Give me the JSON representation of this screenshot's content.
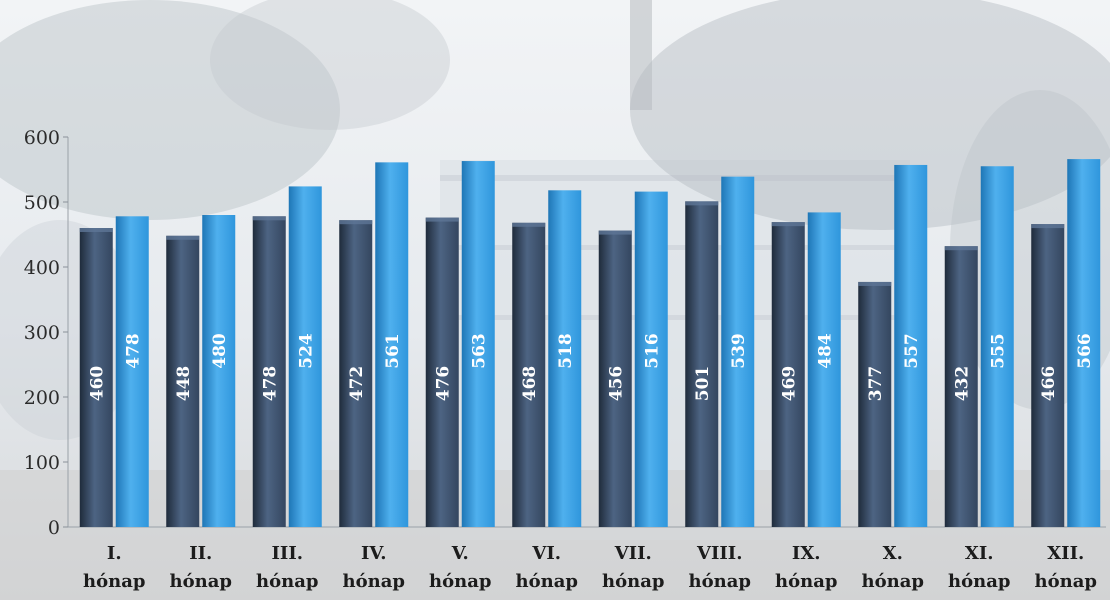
{
  "chart_data": {
    "type": "bar",
    "categories": [
      [
        "I.",
        "hónap"
      ],
      [
        "II.",
        "hónap"
      ],
      [
        "III.",
        "hónap"
      ],
      [
        "IV.",
        "hónap"
      ],
      [
        "V.",
        "hónap"
      ],
      [
        "VI.",
        "hónap"
      ],
      [
        "VII.",
        "hónap"
      ],
      [
        "VIII.",
        "hónap"
      ],
      [
        "IX.",
        "hónap"
      ],
      [
        "X.",
        "hónap"
      ],
      [
        "XI.",
        "hónap"
      ],
      [
        "XII.",
        "hónap"
      ]
    ],
    "series": [
      {
        "values": [
          460,
          448,
          478,
          472,
          476,
          468,
          456,
          501,
          469,
          377,
          432,
          466
        ],
        "color": "#34465f"
      },
      {
        "values": [
          478,
          480,
          524,
          561,
          563,
          518,
          516,
          539,
          484,
          557,
          555,
          566
        ],
        "color": "#2f96dc"
      }
    ],
    "title": "",
    "xlabel": "",
    "ylabel": "",
    "ylim": [
      0,
      600
    ],
    "yticks": [
      0,
      100,
      200,
      300,
      400,
      500,
      600
    ],
    "grid": false,
    "legend": false,
    "data_labels": true,
    "background": "photo"
  }
}
